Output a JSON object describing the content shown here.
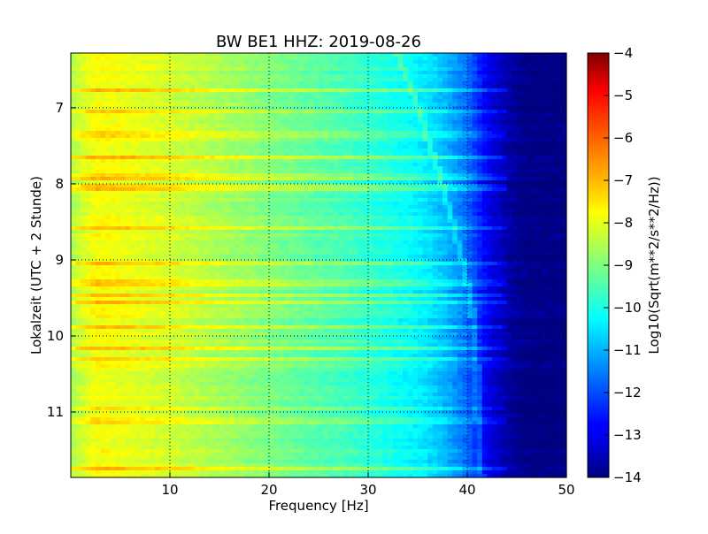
{
  "chart_data": {
    "type": "heatmap",
    "title": "BW BE1 HHZ: 2019-08-26",
    "xlabel": "Frequency [Hz]",
    "ylabel": "Lokalzeit (UTC + 2 Stunde)",
    "xlim": [
      0,
      50
    ],
    "ylim": [
      6.28,
      11.86
    ],
    "y_inverted": true,
    "x_ticks": [
      10,
      20,
      30,
      40,
      50
    ],
    "x_tick_labels": [
      "10",
      "20",
      "30",
      "40",
      "50"
    ],
    "y_ticks": [
      7,
      8,
      9,
      10,
      11
    ],
    "y_tick_labels": [
      "7",
      "8",
      "9",
      "10",
      "11"
    ],
    "grid": true,
    "colormap": "jet",
    "colorbar": {
      "label": "Log10(Sqrt(m**2/s**2/Hz))",
      "range": [
        -14,
        -4
      ],
      "ticks": [
        -4,
        -5,
        -6,
        -7,
        -8,
        -9,
        -10,
        -11,
        -12,
        -13,
        -14
      ],
      "tick_labels": [
        "−4",
        "−5",
        "−6",
        "−7",
        "−8",
        "−9",
        "−10",
        "−11",
        "−12",
        "−13",
        "−14"
      ]
    },
    "spectral_profile": {
      "description": "approximate log10 amplitude vs frequency",
      "frequency_hz": [
        0,
        1,
        2.5,
        5,
        10,
        15,
        20,
        25,
        28,
        30,
        32,
        34,
        36,
        38,
        40,
        42,
        44,
        46,
        50
      ],
      "log10_amplitude": [
        -8.6,
        -8.2,
        -7.8,
        -7.9,
        -8.2,
        -8.6,
        -9.0,
        -9.4,
        -9.6,
        -9.8,
        -10.0,
        -10.2,
        -10.5,
        -11.0,
        -11.7,
        -12.9,
        -13.6,
        -14.0,
        -14.0
      ]
    },
    "horizontal_bands": [
      {
        "time": 6.78,
        "log10_offset": 0.8
      },
      {
        "time": 7.05,
        "log10_offset": 0.7
      },
      {
        "time": 7.35,
        "log10_offset": 0.5
      },
      {
        "time": 7.65,
        "log10_offset": 0.8
      },
      {
        "time": 7.91,
        "log10_offset": 0.7
      },
      {
        "time": 8.05,
        "log10_offset": 0.8
      },
      {
        "time": 8.6,
        "log10_offset": 0.7
      },
      {
        "time": 9.05,
        "log10_offset": 0.6
      },
      {
        "time": 9.3,
        "log10_offset": 0.8
      },
      {
        "time": 9.45,
        "log10_offset": 0.7
      },
      {
        "time": 9.56,
        "log10_offset": 0.7
      },
      {
        "time": 9.88,
        "log10_offset": 0.8
      },
      {
        "time": 10.17,
        "log10_offset": 0.9
      },
      {
        "time": 10.3,
        "log10_offset": 0.7
      },
      {
        "time": 10.95,
        "log10_offset": 0.6
      },
      {
        "time": 11.12,
        "log10_offset": 0.6
      },
      {
        "time": 11.73,
        "log10_offset": 0.7
      }
    ],
    "drifting_line": {
      "times": [
        6.3,
        7.0,
        8.0,
        8.5,
        9.0,
        9.5,
        10.0,
        10.5,
        11.0,
        11.5,
        11.85
      ],
      "frequency_hz": [
        33,
        35,
        37.5,
        38.5,
        39.5,
        40.3,
        40.8,
        41.0,
        41.0,
        41.2,
        41.5
      ]
    }
  }
}
